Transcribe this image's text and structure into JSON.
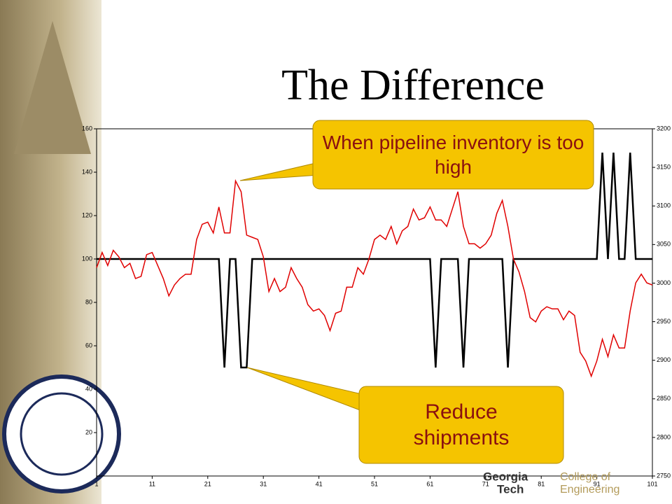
{
  "chart_data": {
    "type": "line",
    "title": "The Difference",
    "x": [
      1,
      2,
      3,
      4,
      5,
      6,
      7,
      8,
      9,
      10,
      11,
      12,
      13,
      14,
      15,
      16,
      17,
      18,
      19,
      20,
      21,
      22,
      23,
      24,
      25,
      26,
      27,
      28,
      29,
      30,
      31,
      32,
      33,
      34,
      35,
      36,
      37,
      38,
      39,
      40,
      41,
      42,
      43,
      44,
      45,
      46,
      47,
      48,
      49,
      50,
      51,
      52,
      53,
      54,
      55,
      56,
      57,
      58,
      59,
      60,
      61,
      62,
      63,
      64,
      65,
      66,
      67,
      68,
      69,
      70,
      71,
      72,
      73,
      74,
      75,
      76,
      77,
      78,
      79,
      80,
      81,
      82,
      83,
      84,
      85,
      86,
      87,
      88,
      89,
      90,
      91,
      92,
      93,
      94,
      95,
      96,
      97,
      98,
      99,
      100,
      101
    ],
    "series": [
      {
        "color": "#000000",
        "values": [
          100,
          100,
          100,
          100,
          100,
          100,
          100,
          100,
          100,
          100,
          100,
          100,
          100,
          100,
          100,
          100,
          100,
          100,
          100,
          100,
          100,
          100,
          100,
          50,
          100,
          100,
          50,
          50,
          100,
          100,
          100,
          100,
          100,
          100,
          100,
          100,
          100,
          100,
          100,
          100,
          100,
          100,
          100,
          100,
          100,
          100,
          100,
          100,
          100,
          100,
          100,
          100,
          100,
          100,
          100,
          100,
          100,
          100,
          100,
          100,
          100,
          50,
          100,
          100,
          100,
          100,
          50,
          100,
          100,
          100,
          100,
          100,
          100,
          100,
          50,
          100,
          100,
          100,
          100,
          100,
          100,
          100,
          100,
          100,
          100,
          100,
          100,
          100,
          100,
          100,
          100,
          149,
          100,
          149,
          100,
          100,
          149,
          100,
          100,
          100,
          100
        ]
      },
      {
        "color": "#e00000",
        "values": [
          96,
          103,
          97,
          104,
          101,
          96,
          98,
          91,
          92,
          102,
          103,
          97,
          91,
          83,
          88,
          91,
          93,
          93,
          109,
          116,
          117,
          112,
          124,
          112,
          112,
          136,
          131,
          111,
          110,
          109,
          101,
          85,
          91,
          85,
          87,
          96,
          91,
          87,
          79,
          76,
          77,
          74,
          67,
          75,
          76,
          87,
          87,
          96,
          93,
          100,
          109,
          111,
          109,
          115,
          107,
          113,
          115,
          123,
          118,
          119,
          124,
          118,
          118,
          115,
          123,
          131,
          115,
          107,
          107,
          105,
          107,
          111,
          121,
          127,
          115,
          100,
          94,
          85,
          73,
          71,
          76,
          78,
          77,
          77,
          72,
          76,
          74,
          57,
          53,
          46,
          53,
          63,
          55,
          65,
          59,
          59,
          76,
          89,
          93,
          89,
          88
        ]
      }
    ],
    "xlim": [
      1,
      101
    ],
    "xticks": [
      1,
      11,
      21,
      31,
      41,
      51,
      61,
      71,
      81,
      91,
      101
    ],
    "ylim": [
      0,
      160
    ],
    "yticks": [
      20,
      40,
      60,
      80,
      100,
      120,
      140,
      160
    ],
    "y2lim": [
      2750,
      3200
    ],
    "y2ticks": [
      2750,
      2800,
      2850,
      2900,
      2950,
      3000,
      3050,
      3100,
      3150,
      3200
    ],
    "annotations": [
      "When pipeline inventory is too high",
      "Reduce shipments"
    ]
  },
  "logo": {
    "line1": "Georgia",
    "line2": "Tech",
    "line3": "College of",
    "line4": "Engineering"
  }
}
